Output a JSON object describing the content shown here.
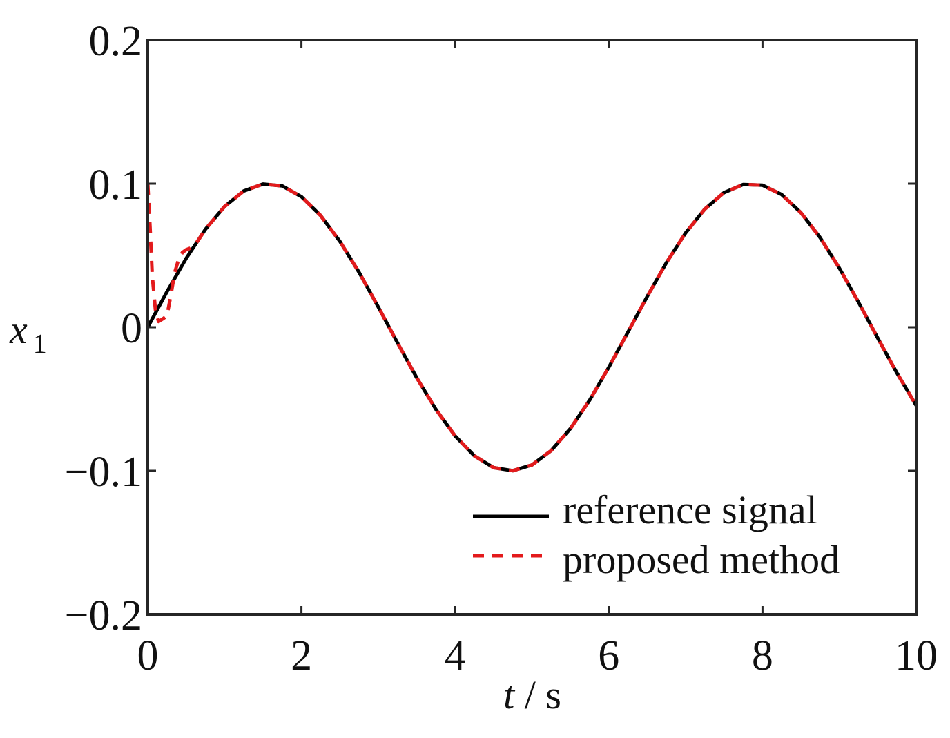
{
  "chart_data": {
    "type": "line",
    "title": "",
    "xlabel": {
      "var": "t",
      "unit": "s"
    },
    "ylabel": {
      "var": "x",
      "sub": "1"
    },
    "xlim": [
      0,
      10
    ],
    "ylim": [
      -0.2,
      0.2
    ],
    "x_ticks": [
      0,
      2,
      4,
      6,
      8,
      10
    ],
    "y_ticks": [
      -0.2,
      -0.1,
      0,
      0.1,
      0.2
    ],
    "x_tick_labels": [
      "0",
      "2",
      "4",
      "6",
      "8",
      "10"
    ],
    "y_tick_labels": [
      "−0.2",
      "−0.1",
      "0",
      "0.1",
      "0.2"
    ],
    "grid": false,
    "legend_position": "bottom-right",
    "series": [
      {
        "name": "reference signal",
        "color": "#000000",
        "style": "solid",
        "x": [
          0,
          0.25,
          0.5,
          0.75,
          1,
          1.25,
          1.5,
          1.75,
          2,
          2.25,
          2.5,
          2.75,
          3,
          3.25,
          3.5,
          3.75,
          4,
          4.25,
          4.5,
          4.75,
          5,
          5.25,
          5.5,
          5.75,
          6,
          6.25,
          6.5,
          6.75,
          7,
          7.25,
          7.5,
          7.75,
          8,
          8.25,
          8.5,
          8.75,
          9,
          9.25,
          9.5,
          9.75,
          10
        ],
        "y": [
          0,
          0.0247,
          0.0479,
          0.0682,
          0.0841,
          0.0949,
          0.0997,
          0.0984,
          0.0909,
          0.0778,
          0.0598,
          0.0382,
          0.0141,
          -0.0108,
          -0.0351,
          -0.0572,
          -0.0757,
          -0.0895,
          -0.0978,
          -0.0999,
          -0.0959,
          -0.0859,
          -0.0706,
          -0.0508,
          -0.0279,
          -0.0033,
          0.0215,
          0.045,
          0.0657,
          0.0823,
          0.0938,
          0.0994,
          0.0989,
          0.0924,
          0.0798,
          0.0624,
          0.0412,
          0.0174,
          -0.0075,
          -0.0319,
          -0.0544
        ]
      },
      {
        "name": "proposed method",
        "color": "#e31a1c",
        "style": "dashed",
        "x": [
          0,
          0.03,
          0.06,
          0.1,
          0.14,
          0.2,
          0.25,
          0.3,
          0.35,
          0.4,
          0.45,
          0.5,
          0.55,
          0.6,
          0.65,
          0.75,
          1,
          1.25,
          1.5,
          1.75,
          2,
          2.25,
          2.5,
          2.75,
          3,
          3.25,
          3.5,
          3.75,
          4,
          4.25,
          4.5,
          4.75,
          5,
          5.25,
          5.5,
          5.75,
          6,
          6.25,
          6.5,
          6.75,
          7,
          7.25,
          7.5,
          7.75,
          8,
          8.25,
          8.5,
          8.75,
          9,
          9.25,
          9.5,
          9.75,
          10
        ],
        "y": [
          0.1,
          0.07,
          0.035,
          0.012,
          0.004,
          0.006,
          0.008,
          0.022,
          0.038,
          0.047,
          0.052,
          0.054,
          0.055,
          0.057,
          0.06,
          0.0682,
          0.0841,
          0.0949,
          0.0997,
          0.0984,
          0.0909,
          0.0778,
          0.0598,
          0.0382,
          0.0141,
          -0.0108,
          -0.0351,
          -0.0572,
          -0.0757,
          -0.0895,
          -0.0978,
          -0.0999,
          -0.0959,
          -0.0859,
          -0.0706,
          -0.0508,
          -0.0279,
          -0.0033,
          0.0215,
          0.045,
          0.0657,
          0.0823,
          0.0938,
          0.0994,
          0.0989,
          0.0924,
          0.0798,
          0.0624,
          0.0412,
          0.0174,
          -0.0075,
          -0.0319,
          -0.0544
        ]
      }
    ]
  }
}
